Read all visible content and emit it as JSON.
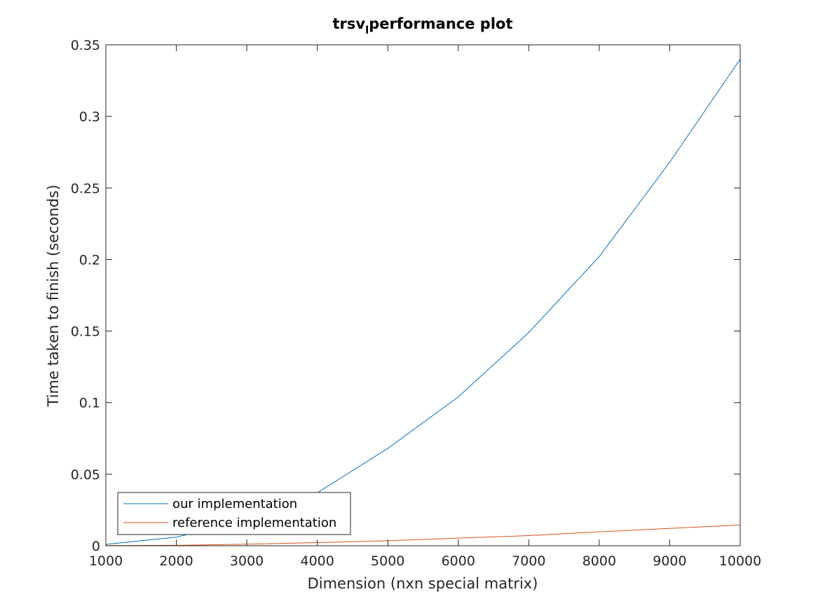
{
  "chart_data": {
    "type": "line",
    "title": "trsv",
    "title_subscript": "l",
    "title_rest": "performance plot",
    "xlabel": "Dimension (nxn special matrix)",
    "ylabel": "Time taken to finish (seconds)",
    "xlim": [
      1000,
      10000
    ],
    "ylim": [
      0,
      0.35
    ],
    "x_ticks": [
      1000,
      2000,
      3000,
      4000,
      5000,
      6000,
      7000,
      8000,
      9000,
      10000
    ],
    "x_tick_labels": [
      "1000",
      "2000",
      "3000",
      "4000",
      "5000",
      "6000",
      "7000",
      "8000",
      "9000",
      "10000"
    ],
    "y_ticks": [
      0,
      0.05,
      0.1,
      0.15,
      0.2,
      0.25,
      0.3,
      0.35
    ],
    "y_tick_labels": [
      "0",
      "0.05",
      "0.1",
      "0.15",
      "0.2",
      "0.25",
      "0.3",
      "0.35"
    ],
    "grid": false,
    "legend_position": "bottom-left",
    "x": [
      1000,
      2000,
      3000,
      4000,
      5000,
      6000,
      7000,
      8000,
      9000,
      10000
    ],
    "series": [
      {
        "name": "our implementation",
        "color": "#0072BD",
        "values": [
          0.001,
          0.006,
          0.018,
          0.037,
          0.068,
          0.104,
          0.149,
          0.202,
          0.268,
          0.34
        ]
      },
      {
        "name": "reference implementation",
        "color": "#D95319",
        "values": [
          0.0001,
          0.0003,
          0.0011,
          0.0022,
          0.0035,
          0.0053,
          0.0071,
          0.0097,
          0.0121,
          0.0145
        ]
      }
    ]
  }
}
